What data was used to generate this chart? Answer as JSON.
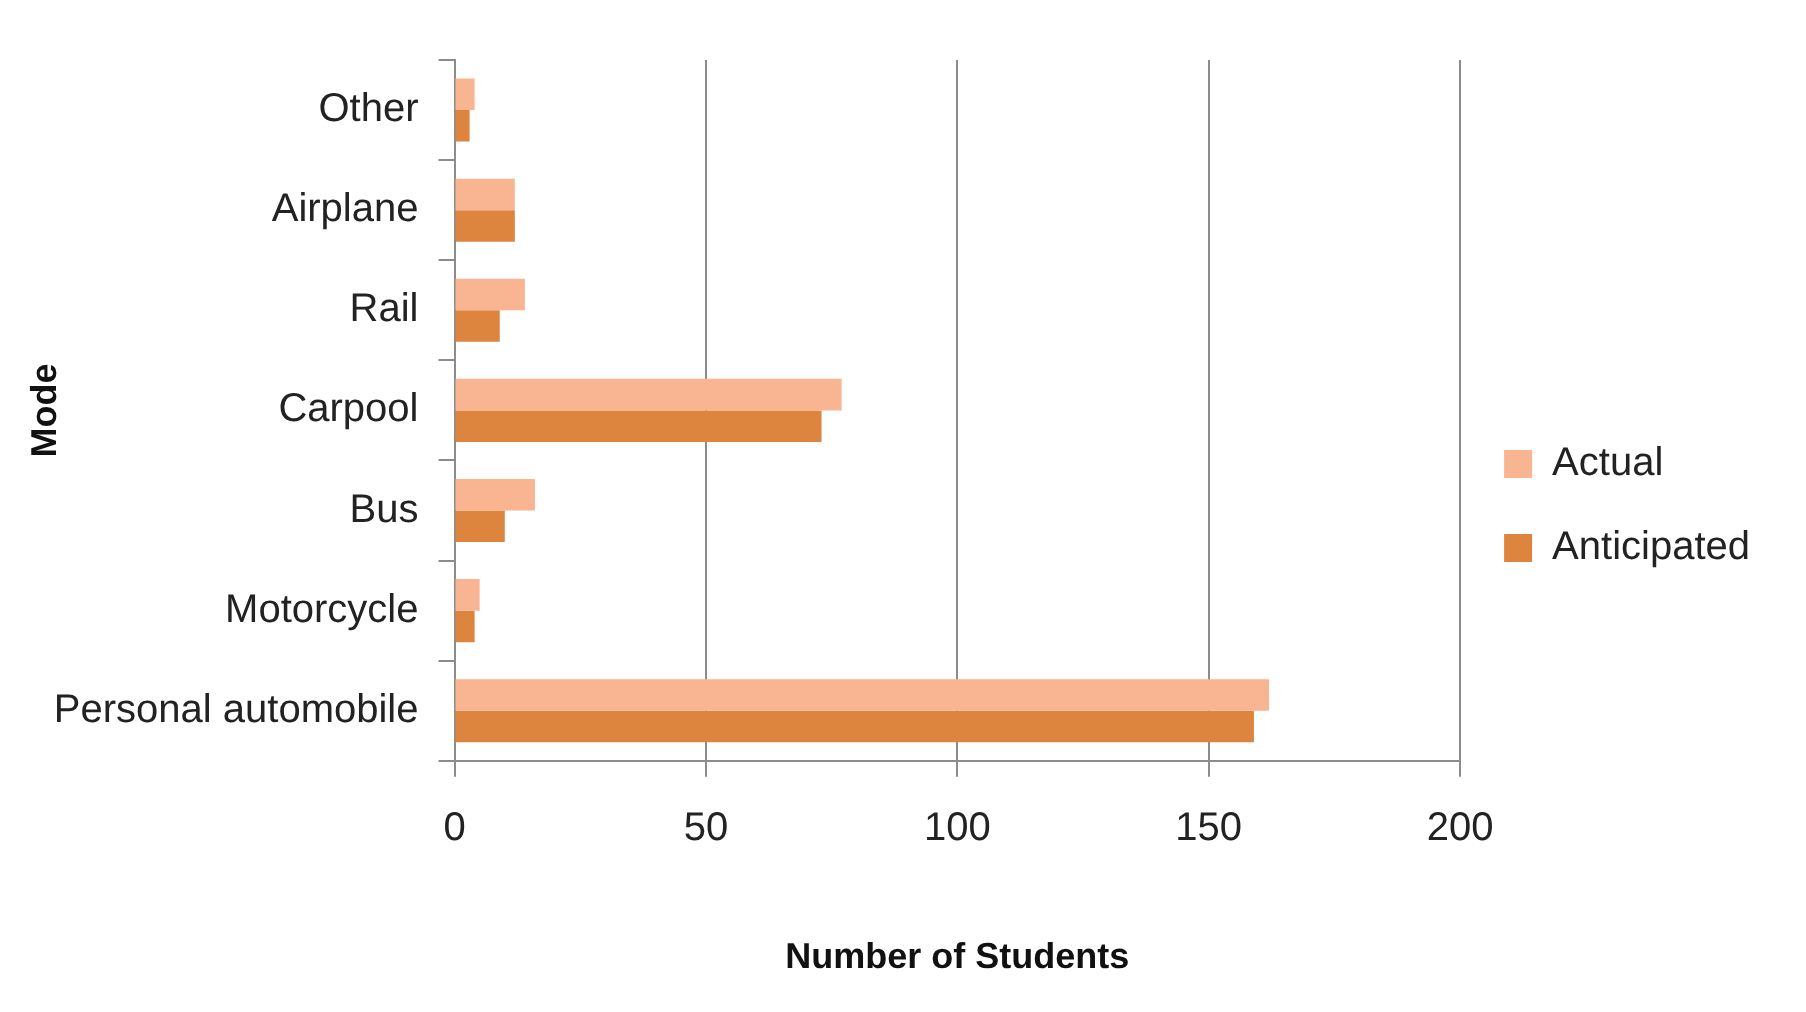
{
  "chart_data": {
    "type": "bar",
    "orientation": "horizontal",
    "xlabel": "Number of Students",
    "ylabel": "Mode",
    "categories": [
      "Other",
      "Airplane",
      "Rail",
      "Carpool",
      "Bus",
      "Motorcycle",
      "Personal automobile"
    ],
    "series": [
      {
        "name": "Actual",
        "color": "#f9b591",
        "values": [
          4,
          12,
          14,
          77,
          16,
          5,
          162
        ]
      },
      {
        "name": "Anticipated",
        "color": "#dd843e",
        "values": [
          3,
          12,
          9,
          73,
          10,
          4,
          159
        ]
      }
    ],
    "xlim": [
      0,
      200
    ],
    "xticks": [
      0,
      50,
      100,
      150,
      200
    ],
    "grid": "x",
    "legend": "right"
  }
}
